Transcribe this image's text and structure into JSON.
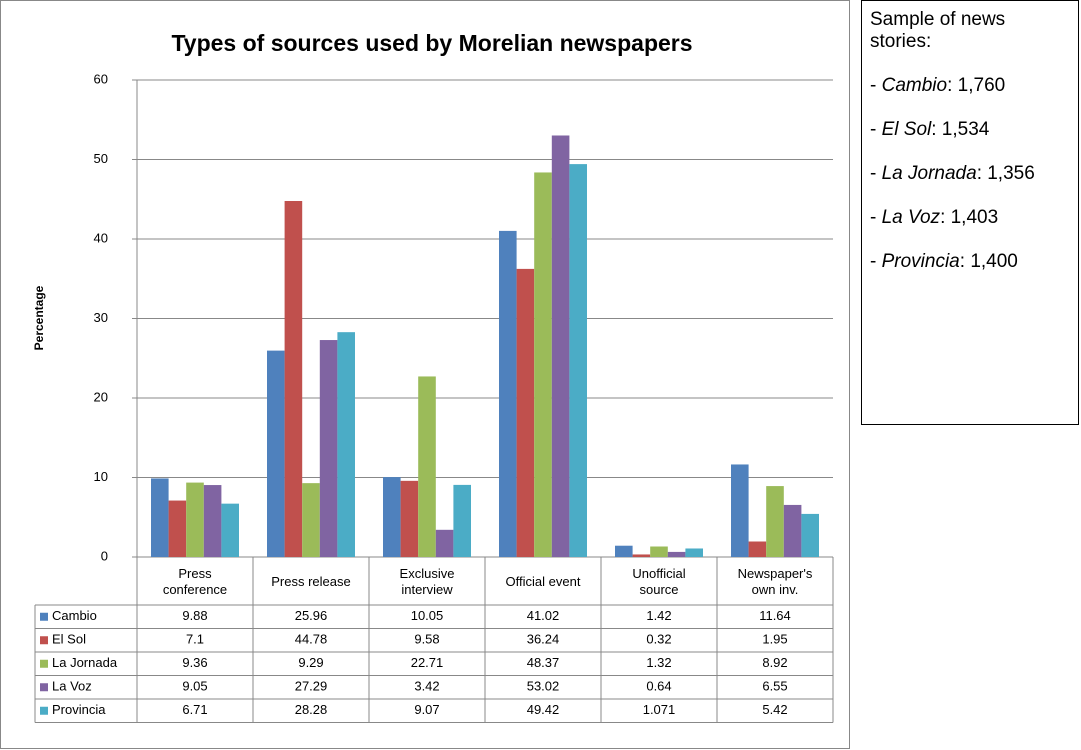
{
  "chart_data": {
    "type": "bar",
    "title": "Types of sources used by Morelian newspapers",
    "ylabel": "Percentage",
    "categories": [
      "Press conference",
      "Press release",
      "Exclusive interview",
      "Official event",
      "Unofficial source",
      "Newspaper's own inv."
    ],
    "series": [
      {
        "name": "Cambio",
        "color": "#4f81bd",
        "values": [
          9.88,
          25.96,
          10.05,
          41.02,
          1.42,
          11.64
        ]
      },
      {
        "name": "El Sol",
        "color": "#c0504d",
        "values": [
          7.1,
          44.78,
          9.58,
          36.24,
          0.32,
          1.95
        ]
      },
      {
        "name": "La Jornada",
        "color": "#9bbb59",
        "values": [
          9.36,
          9.29,
          22.71,
          48.37,
          1.32,
          8.92
        ]
      },
      {
        "name": "La Voz",
        "color": "#8064a2",
        "values": [
          9.05,
          27.29,
          3.42,
          53.02,
          0.64,
          6.55
        ]
      },
      {
        "name": "Provincia",
        "color": "#4bacc6",
        "values": [
          6.71,
          28.28,
          9.07,
          49.42,
          1.071,
          5.42
        ]
      }
    ],
    "ylim": [
      0,
      60
    ],
    "yticks": [
      0,
      10,
      20,
      30,
      40,
      50,
      60
    ],
    "grid": true
  },
  "notes": {
    "title": "Sample of news stories:",
    "items": [
      {
        "prefix": "- ",
        "name": "Cambio",
        "suffix": ": 1,760"
      },
      {
        "prefix": "- ",
        "name": "El Sol",
        "suffix": ": 1,534"
      },
      {
        "prefix": "- ",
        "name": "La Jornada",
        "suffix": ": 1,356"
      },
      {
        "prefix": "- ",
        "name": "La Voz",
        "suffix": ": 1,403"
      },
      {
        "prefix": "- ",
        "name": "Provincia",
        "suffix": ": 1,400"
      }
    ]
  }
}
